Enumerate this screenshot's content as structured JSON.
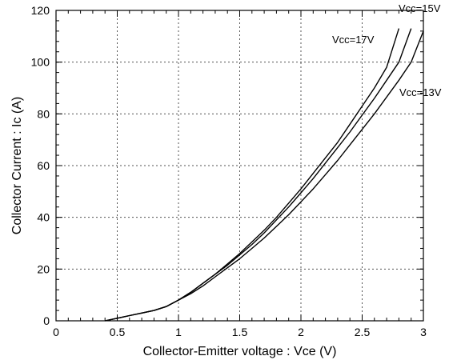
{
  "chart_data": {
    "type": "line",
    "title": "",
    "xlabel": "Collector-Emitter voltage : Vce  (V)",
    "ylabel": "Collector Current : Ic  (A)",
    "xlim": [
      0,
      3
    ],
    "ylim": [
      0,
      120
    ],
    "x_ticks": [
      "0",
      "0.5",
      "1",
      "1.5",
      "2",
      "2.5",
      "3"
    ],
    "y_ticks": [
      "0",
      "20",
      "40",
      "60",
      "80",
      "100",
      "120"
    ],
    "grid": true,
    "grid_style": "dotted",
    "legend": "none",
    "line_color": "#000000",
    "series": [
      {
        "name": "Vcc=15V",
        "x": [
          0.4,
          0.5,
          0.6,
          0.7,
          0.8,
          0.9,
          1.0,
          1.1,
          1.2,
          1.3,
          1.4,
          1.5,
          1.6,
          1.7,
          1.8,
          1.9,
          2.0,
          2.1,
          2.2,
          2.3,
          2.4,
          2.5,
          2.6,
          2.7,
          2.8,
          2.9
        ],
        "y": [
          0,
          1,
          2,
          3,
          4,
          5.5,
          8,
          11,
          14.5,
          18,
          21.5,
          25.5,
          29.5,
          34,
          39,
          44,
          49.5,
          55,
          61,
          67,
          73,
          79.5,
          86,
          93,
          100,
          113
        ]
      },
      {
        "name": "Vcc=17V",
        "x": [
          0.4,
          0.5,
          0.6,
          0.7,
          0.8,
          0.9,
          1.0,
          1.1,
          1.2,
          1.3,
          1.4,
          1.5,
          1.6,
          1.7,
          1.8,
          1.9,
          2.0,
          2.1,
          2.2,
          2.3,
          2.4,
          2.5,
          2.6,
          2.7,
          2.8
        ],
        "y": [
          0,
          1,
          2,
          3,
          4,
          5.5,
          8,
          11,
          14.5,
          18,
          22,
          26,
          30.5,
          35,
          40,
          45.5,
          51,
          57,
          63,
          69,
          76,
          83,
          90,
          98,
          113
        ]
      },
      {
        "name": "Vcc=13V",
        "x": [
          0.4,
          0.5,
          0.6,
          0.7,
          0.8,
          0.9,
          1.0,
          1.1,
          1.2,
          1.3,
          1.4,
          1.5,
          1.6,
          1.7,
          1.8,
          1.9,
          2.0,
          2.1,
          2.2,
          2.3,
          2.4,
          2.5,
          2.6,
          2.7,
          2.8,
          2.9,
          3.0
        ],
        "y": [
          0,
          1,
          2,
          3,
          4,
          5.5,
          8,
          10.5,
          13.5,
          17,
          20.5,
          24,
          28,
          32,
          36.5,
          41,
          46,
          51,
          56.5,
          62,
          68,
          74,
          80,
          86.5,
          93,
          100,
          112
        ]
      }
    ]
  }
}
